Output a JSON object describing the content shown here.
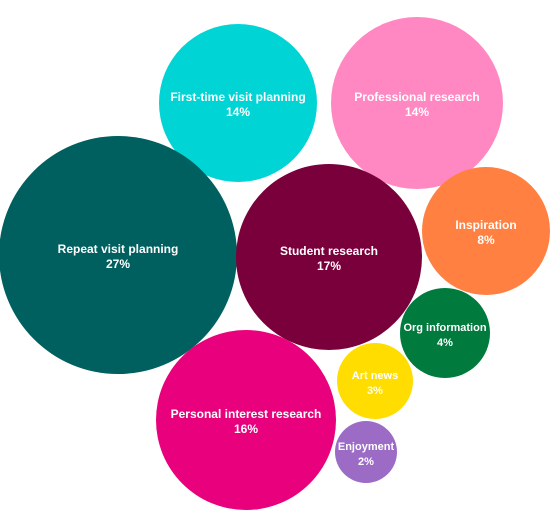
{
  "chart_data": {
    "type": "bubble",
    "title": "",
    "unit": "%",
    "bubbles": [
      {
        "label": "First-time visit planning",
        "value": 14,
        "value_label": "14%",
        "color": "#00D4D5"
      },
      {
        "label": "Professional research",
        "value": 14,
        "value_label": "14%",
        "color": "#FF88C2"
      },
      {
        "label": "Repeat visit planning",
        "value": 27,
        "value_label": "27%",
        "color": "#005F5F"
      },
      {
        "label": "Student research",
        "value": 17,
        "value_label": "17%",
        "color": "#7A003C"
      },
      {
        "label": "Inspiration",
        "value": 8,
        "value_label": "8%",
        "color": "#FF8040"
      },
      {
        "label": "Org information",
        "value": 4,
        "value_label": "4%",
        "color": "#007A3D"
      },
      {
        "label": "Art news",
        "value": 3,
        "value_label": "3%",
        "color": "#FFDD00"
      },
      {
        "label": "Personal interest research",
        "value": 16,
        "value_label": "16%",
        "color": "#E8007C"
      },
      {
        "label": "Enjoyment",
        "value": 2,
        "value_label": "2%",
        "color": "#9B6BC6"
      }
    ]
  }
}
